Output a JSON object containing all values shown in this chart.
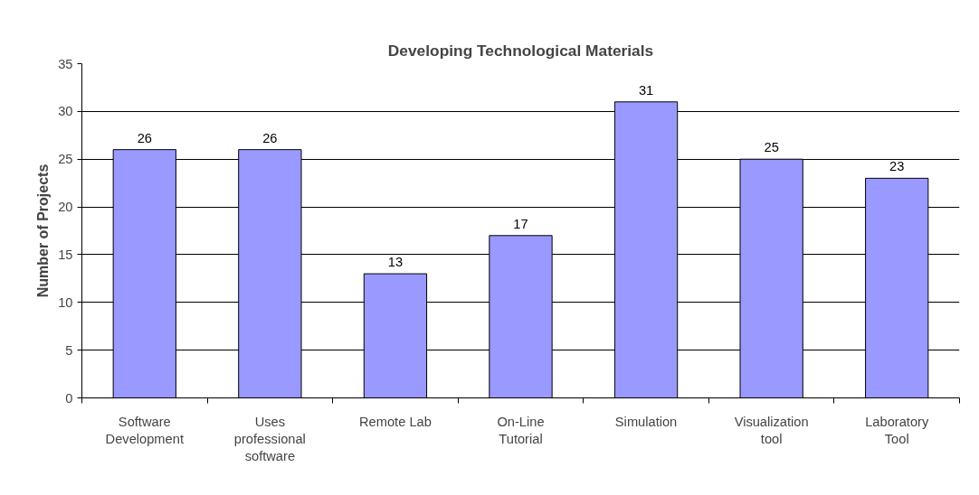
{
  "chart_data": {
    "type": "bar",
    "title": "Developing Technological Materials",
    "ylabel": "Number of Projects",
    "categories": [
      "Software Development",
      "Uses professional software",
      "Remote Lab",
      "On-Line Tutorial",
      "Simulation",
      "Visualization tool",
      "Laboratory Tool"
    ],
    "values": [
      26,
      26,
      13,
      17,
      31,
      25,
      23
    ],
    "color": "#9999ff",
    "ylim": [
      0,
      35
    ],
    "yticks": [
      0,
      5,
      10,
      15,
      20,
      25,
      30,
      35
    ],
    "grid": "y",
    "data_labels": true
  }
}
